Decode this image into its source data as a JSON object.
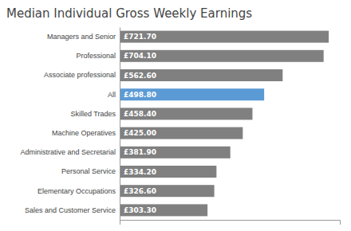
{
  "chart_data": {
    "type": "bar",
    "orientation": "horizontal",
    "title": "Median Individual Gross Weekly Earnings",
    "categories": [
      "Sales and Customer Service",
      "Elementary Occupations",
      "Personal Service",
      "Administrative and Secretarial",
      "Machine Operatives",
      "Skilled Trades",
      "All",
      "Associate professional",
      "Professional",
      "Managers and Senior"
    ],
    "values": [
      303.3,
      326.6,
      334.2,
      381.9,
      425.0,
      458.4,
      498.8,
      562.6,
      704.1,
      721.7
    ],
    "value_labels": [
      "£303.30",
      "£326.60",
      "£334.20",
      "£381.90",
      "£425.00",
      "£458.40",
      "£498.80",
      "£562.60",
      "£704.10",
      "£721.70"
    ],
    "colors": [
      "#808080",
      "#808080",
      "#808080",
      "#808080",
      "#808080",
      "#808080",
      "#5b9bd5",
      "#808080",
      "#808080",
      "#808080"
    ],
    "xlim": [
      0,
      760
    ],
    "xticks": [],
    "grid": false,
    "data_labels": true,
    "tick_labels": "y"
  }
}
